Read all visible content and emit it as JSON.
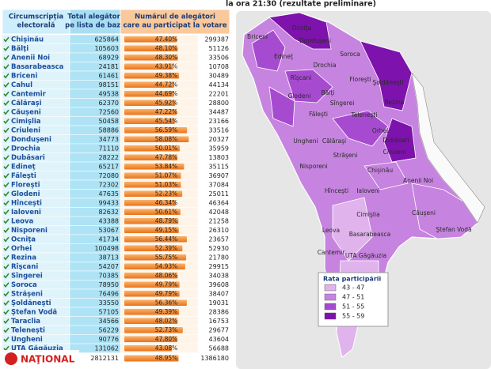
{
  "header": {
    "subtitle": "la ora 21:30 (rezultate preliminare)"
  },
  "table": {
    "columns": [
      [
        "Circumscripţia",
        "electorală"
      ],
      [
        "Total alegători",
        "pe lista de bază"
      ],
      [
        "Numărul de alegători",
        "care au participat la votare"
      ]
    ],
    "rows": [
      [
        "Chişinău",
        625864,
        {
          "value": 47.4,
          "label": "47.40%"
        },
        299387
      ],
      [
        "Bălţi",
        105603,
        {
          "value": 48.1,
          "label": "48.10%"
        },
        51126
      ],
      [
        "Anenii Noi",
        68929,
        {
          "value": 48.3,
          "label": "48.30%"
        },
        33506
      ],
      [
        "Basarabeasca",
        24181,
        {
          "value": 43.91,
          "label": "43.91%"
        },
        10708
      ],
      [
        "Briceni",
        61461,
        {
          "value": 49.38,
          "label": "49.38%"
        },
        30489
      ],
      [
        "Cahul",
        98151,
        {
          "value": 44.72,
          "label": "44.72%"
        },
        44134
      ],
      [
        "Cantemir",
        49538,
        {
          "value": 44.69,
          "label": "44.69%"
        },
        22201
      ],
      [
        "Călăraşi",
        62370,
        {
          "value": 45.92,
          "label": "45.92%"
        },
        28800
      ],
      [
        "Căuşeni",
        72560,
        {
          "value": 47.22,
          "label": "47.22%"
        },
        34487
      ],
      [
        "Cimişlia",
        50458,
        {
          "value": 45.54,
          "label": "45.54%"
        },
        23166
      ],
      [
        "Criuleni",
        58886,
        {
          "value": 56.59,
          "label": "56.59%"
        },
        33516
      ],
      [
        "Donduşeni",
        34773,
        {
          "value": 58.08,
          "label": "58.08%"
        },
        20327
      ],
      [
        "Drochia",
        71110,
        {
          "value": 50.01,
          "label": "50.01%"
        },
        35959
      ],
      [
        "Dubăsari",
        28222,
        {
          "value": 47.78,
          "label": "47.78%"
        },
        13803
      ],
      [
        "Edineţ",
        65217,
        {
          "value": 53.84,
          "label": "53.84%"
        },
        35115
      ],
      [
        "Făleşti",
        72080,
        {
          "value": 51.07,
          "label": "51.07%"
        },
        36907
      ],
      [
        "Floreşti",
        72302,
        {
          "value": 51.03,
          "label": "51.03%"
        },
        37084
      ],
      [
        "Glodeni",
        47635,
        {
          "value": 52.23,
          "label": "52.23%"
        },
        25011
      ],
      [
        "Hînceşti",
        99433,
        {
          "value": 46.34,
          "label": "46.34%"
        },
        46364
      ],
      [
        "Ialoveni",
        82632,
        {
          "value": 50.61,
          "label": "50.61%"
        },
        42048
      ],
      [
        "Leova",
        43388,
        {
          "value": 48.79,
          "label": "48.79%"
        },
        21258
      ],
      [
        "Nisporeni",
        53067,
        {
          "value": 49.15,
          "label": "49.15%"
        },
        26310
      ],
      [
        "Ocniţa",
        41734,
        {
          "value": 56.44,
          "label": "56.44%"
        },
        23657
      ],
      [
        "Orhei",
        100498,
        {
          "value": 52.39,
          "label": "52.39%"
        },
        52930
      ],
      [
        "Rezina",
        38713,
        {
          "value": 55.75,
          "label": "55.75%"
        },
        21780
      ],
      [
        "Rîşcani",
        54207,
        {
          "value": 54.93,
          "label": "54.93%"
        },
        29915
      ],
      [
        "Sîngerei",
        70385,
        {
          "value": 48.06,
          "label": "48.06%"
        },
        34038
      ],
      [
        "Soroca",
        78950,
        {
          "value": 49.79,
          "label": "49.79%"
        },
        39608
      ],
      [
        "Străşeni",
        76496,
        {
          "value": 49.79,
          "label": "49.79%"
        },
        38407
      ],
      [
        "Şoldăneşti",
        33550,
        {
          "value": 56.36,
          "label": "56.36%"
        },
        19031
      ],
      [
        "Ştefan Vodă",
        57105,
        {
          "value": 49.39,
          "label": "49.39%"
        },
        28386
      ],
      [
        "Taraclia",
        34566,
        {
          "value": 48.02,
          "label": "48.02%"
        },
        16753
      ],
      [
        "Teleneşti",
        56229,
        {
          "value": 52.73,
          "label": "52.73%"
        },
        29677
      ],
      [
        "Ungheni",
        90776,
        {
          "value": 47.8,
          "label": "47.80%"
        },
        43604
      ],
      [
        "UTA Găgăuzia",
        131062,
        {
          "value": 43.08,
          "label": "43.08%"
        },
        56688
      ]
    ],
    "total": [
      2812131,
      {
        "value": 48.95,
        "label": "48.95%"
      },
      1386180
    ]
  },
  "map": {
    "legend": {
      "title": "Rata participării",
      "items": [
        {
          "label": "43 - 47",
          "color": "#e0b3ec"
        },
        {
          "label": "47 - 51",
          "color": "#c783e0"
        },
        {
          "label": "51 - 55",
          "color": "#a64bd0"
        },
        {
          "label": "55 - 59",
          "color": "#7e12ac"
        }
      ]
    }
  },
  "logo": "NAŢIONAL"
}
